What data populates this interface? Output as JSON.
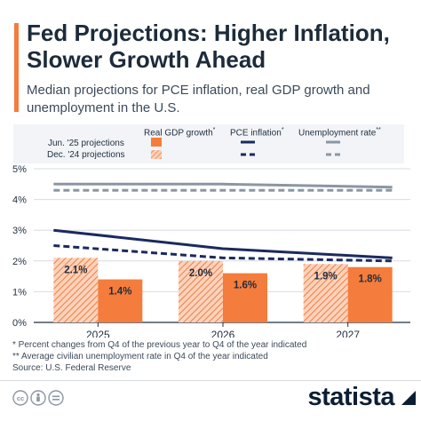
{
  "header": {
    "title": "Fed Projections: Higher Inflation, Slower Growth Ahead",
    "subtitle": "Median projections for PCE inflation, real GDP growth and unemployment in the U.S."
  },
  "legend": {
    "headers": [
      {
        "label": "Real GDP growth",
        "mark": "*"
      },
      {
        "label": "PCE inflation",
        "mark": "*"
      },
      {
        "label": "Unemployment rate",
        "mark": "**"
      }
    ],
    "rows": [
      "Jun. '25 projections",
      "Dec. '24 projections"
    ]
  },
  "chart_data": {
    "type": "bar",
    "categories": [
      "2025",
      "2026",
      "2027"
    ],
    "ylim": [
      0,
      5
    ],
    "yticks": [
      "0%",
      "1%",
      "2%",
      "3%",
      "4%",
      "5%"
    ],
    "bars": [
      {
        "name": "Real GDP growth Dec. '24 projections",
        "values": [
          2.1,
          2.0,
          1.9
        ],
        "labels": [
          "2.1%",
          "2.0%",
          "1.9%"
        ],
        "style": "hatched"
      },
      {
        "name": "Real GDP growth Jun. '25 projections",
        "values": [
          1.4,
          1.6,
          1.8
        ],
        "labels": [
          "1.4%",
          "1.6%",
          "1.8%"
        ],
        "style": "solid"
      }
    ],
    "lines": [
      {
        "name": "PCE inflation Jun. '25 projections",
        "values": [
          3.0,
          2.4,
          2.1
        ],
        "style": "solid",
        "color": "#1b2a5e"
      },
      {
        "name": "PCE inflation Dec. '24 projections",
        "values": [
          2.5,
          2.1,
          2.0
        ],
        "style": "dashed",
        "color": "#1b2a5e"
      },
      {
        "name": "Unemployment rate Jun. '25 projections",
        "values": [
          4.5,
          4.5,
          4.4
        ],
        "style": "solid",
        "color": "#8a97a3"
      },
      {
        "name": "Unemployment rate Dec. '24 projections",
        "values": [
          4.3,
          4.3,
          4.3
        ],
        "style": "dashed",
        "color": "#8a97a3"
      }
    ],
    "colors": {
      "gdp": "#f47c3c",
      "gdp_hatch_bg": "#fbd3bd",
      "pce": "#1b2a5e",
      "unemployment": "#8a97a3"
    },
    "grid": true
  },
  "footnotes": [
    "*   Percent changes from Q4 of the previous year to Q4 of the year indicated",
    "** Average civilian unemployment rate in Q4 of the year indicated",
    "Source: U.S. Federal Reserve"
  ],
  "brand": {
    "logo": "statista",
    "icons": [
      "cc-icon",
      "person-icon",
      "equals-icon"
    ]
  }
}
